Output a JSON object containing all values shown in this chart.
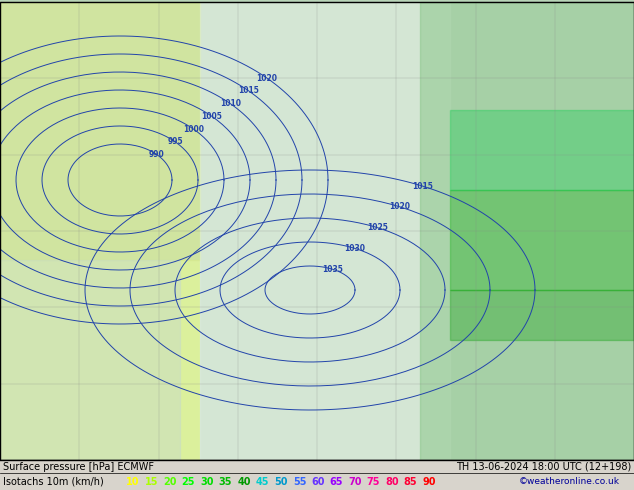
{
  "title_line1": "Surface pressure [hPa] ECMWF",
  "title_line2": "Isotachs 10m (km/h)",
  "date_str": "TH 13-06-2024 18:00 UTC (12+198)",
  "copyright": "©weatheronline.co.uk",
  "isotach_values": [
    10,
    15,
    20,
    25,
    30,
    35,
    40,
    45,
    50,
    55,
    60,
    65,
    70,
    75,
    80,
    85,
    90
  ],
  "isotach_colors": [
    "#ffff00",
    "#aeff00",
    "#00ff00",
    "#00e600",
    "#00cc00",
    "#00b300",
    "#009900",
    "#00cccc",
    "#0099cc",
    "#0066cc",
    "#0033cc",
    "#6600cc",
    "#9900cc",
    "#cc00cc",
    "#cc0099",
    "#cc0066",
    "#cc0033"
  ],
  "bottom_bar_bg": "#d4d0c8",
  "bottom_line1_bg": "#d4d0c8",
  "fig_width": 6.34,
  "fig_height": 4.9,
  "dpi": 100,
  "map_image_url": "https://www.weatheronline.co.uk/wetter/maps/ECMWF_Qui_13.06.2024_18_UTC_isotachs.png"
}
